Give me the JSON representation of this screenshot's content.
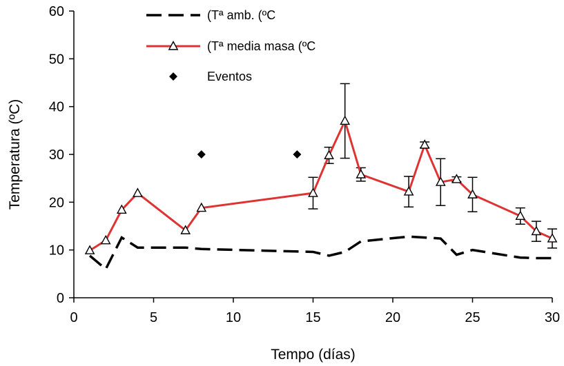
{
  "chart_data": {
    "type": "line",
    "xlabel": "Tempo (días)",
    "ylabel": "Temperatura (ºC)",
    "xlim": [
      0,
      30
    ],
    "ylim": [
      0,
      60
    ],
    "xticks": [
      0,
      5,
      10,
      15,
      20,
      25,
      30
    ],
    "yticks": [
      0,
      10,
      20,
      30,
      40,
      50,
      60
    ],
    "grid": false,
    "legend_position": "top-center",
    "series": [
      {
        "name": "(Tª amb. (ºC",
        "style": "dashed",
        "color": "#000000",
        "x": [
          1,
          2,
          3,
          4,
          7,
          8,
          15,
          16,
          17,
          18,
          21,
          22,
          23,
          24,
          25,
          28,
          29,
          30
        ],
        "y": [
          8.8,
          6.0,
          12.6,
          10.5,
          10.5,
          10.2,
          9.6,
          8.8,
          9.6,
          11.8,
          12.8,
          12.6,
          12.4,
          9.0,
          10.0,
          8.4,
          8.3,
          8.3
        ]
      },
      {
        "name": "(Tª media masa (ºC",
        "style": "solid-triangle",
        "color": "#dd3333",
        "x": [
          1,
          2,
          3,
          4,
          7,
          8,
          15,
          16,
          17,
          18,
          21,
          22,
          23,
          24,
          25,
          28,
          29,
          30
        ],
        "y": [
          9.9,
          12.0,
          18.4,
          21.9,
          14.1,
          18.8,
          21.9,
          29.8,
          37.0,
          25.8,
          22.2,
          32.0,
          24.2,
          24.8,
          21.6,
          17.1,
          13.9,
          12.4
        ],
        "error": [
          0,
          0,
          0,
          0,
          0,
          0,
          3.3,
          1.7,
          7.8,
          1.4,
          3.2,
          0.6,
          4.9,
          0.5,
          3.6,
          1.7,
          2.1,
          2.0
        ]
      },
      {
        "name": "Eventos",
        "style": "marker-diamond",
        "color": "#000000",
        "x": [
          8,
          14
        ],
        "y": [
          30,
          30
        ]
      }
    ]
  }
}
